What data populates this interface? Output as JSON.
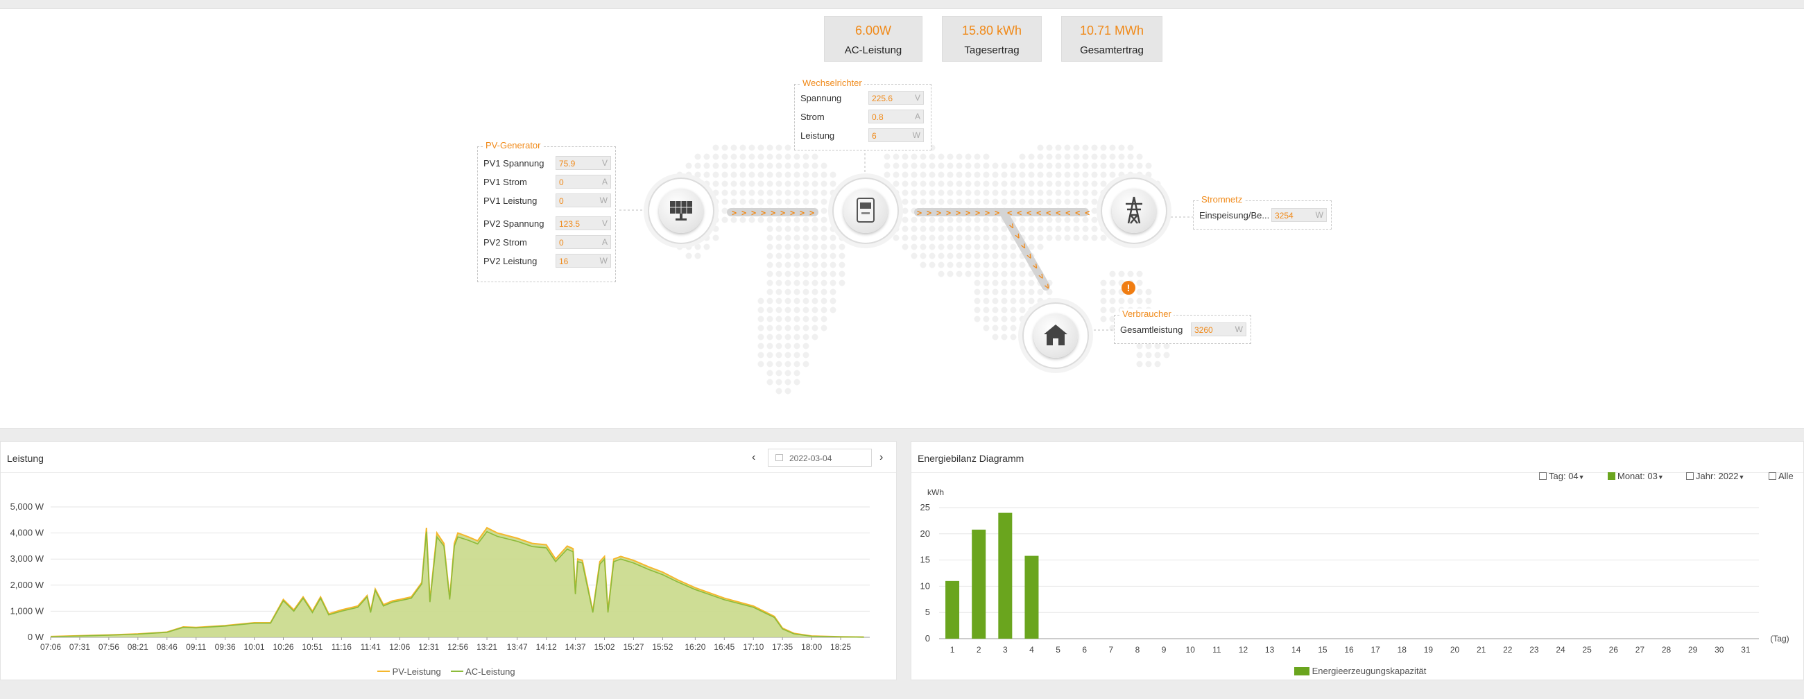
{
  "stats": [
    {
      "value": "6.00W",
      "label": "AC-Leistung"
    },
    {
      "value": "15.80 kWh",
      "label": "Tagesertrag"
    },
    {
      "value": "10.71 MWh",
      "label": "Gesamtertrag"
    }
  ],
  "pv_generator": {
    "title": "PV-Generator",
    "rows": [
      {
        "label": "PV1 Spannung",
        "value": "75.9",
        "unit": "V"
      },
      {
        "label": "PV1 Strom",
        "value": "0",
        "unit": "A"
      },
      {
        "label": "PV1 Leistung",
        "value": "0",
        "unit": "W"
      },
      {
        "label": "PV2 Spannung",
        "value": "123.5",
        "unit": "V"
      },
      {
        "label": "PV2 Strom",
        "value": "0",
        "unit": "A"
      },
      {
        "label": "PV2 Leistung",
        "value": "16",
        "unit": "W"
      }
    ]
  },
  "inverter": {
    "title": "Wechselrichter",
    "rows": [
      {
        "label": "Spannung",
        "value": "225.6",
        "unit": "V"
      },
      {
        "label": "Strom",
        "value": "0.8",
        "unit": "A"
      },
      {
        "label": "Leistung",
        "value": "6",
        "unit": "W"
      }
    ]
  },
  "grid": {
    "title": "Stromnetz",
    "rows": [
      {
        "label": "Einspeisung/Be...",
        "value": "3254",
        "unit": "W"
      }
    ]
  },
  "consumer": {
    "title": "Verbraucher",
    "rows": [
      {
        "label": "Gesamtleistung",
        "value": "3260",
        "unit": "W"
      }
    ]
  },
  "icons": {
    "pv": "solar-panel-icon",
    "inverter": "inverter-icon",
    "grid": "power-pylon-icon",
    "home": "house-icon",
    "warning": "warning-icon",
    "calendar": "calendar-icon"
  },
  "colors": {
    "accent": "#f08a1a",
    "pv_line": "#f5b72c",
    "ac_line": "#8dbb3a",
    "area_fill": "#c9d98a",
    "bar": "#6aa51e",
    "warning": "#f07d12"
  },
  "power_panel": {
    "title": "Leistung",
    "date": "2022-03-04",
    "prev_label": "‹",
    "next_label": "›",
    "legend": [
      "PV-Leistung",
      "AC-Leistung"
    ]
  },
  "energy_panel": {
    "title": "Energiebilanz Diagramm",
    "controls": {
      "tag_label": "Tag:",
      "tag_value": "04",
      "monat_label": "Monat:",
      "monat_value": "03",
      "jahr_label": "Jahr:",
      "jahr_value": "2022",
      "alle_label": "Alle"
    },
    "legend": "Energieerzeugungskapazität"
  },
  "chart_data": [
    {
      "type": "area",
      "title": "Leistung",
      "y_ticks": [
        "0 W",
        "1,000 W",
        "2,000 W",
        "3,000 W",
        "4,000 W",
        "5,000 W"
      ],
      "ylim": [
        0,
        5000
      ],
      "x_tick_labels": [
        "07:06",
        "07:31",
        "07:56",
        "08:21",
        "08:46",
        "09:11",
        "09:36",
        "10:01",
        "10:26",
        "10:51",
        "11:16",
        "11:41",
        "12:06",
        "12:31",
        "12:56",
        "13:21",
        "13:47",
        "14:12",
        "14:37",
        "15:02",
        "15:27",
        "15:52",
        "16:20",
        "16:45",
        "17:10",
        "17:35",
        "18:00",
        "18:25"
      ],
      "x_times": [
        "07:06",
        "07:31",
        "07:56",
        "08:21",
        "08:46",
        "09:00",
        "09:11",
        "09:36",
        "10:01",
        "10:15",
        "10:26",
        "10:35",
        "10:43",
        "10:51",
        "10:58",
        "11:05",
        "11:16",
        "11:30",
        "11:38",
        "11:41",
        "11:45",
        "11:52",
        "12:00",
        "12:06",
        "12:16",
        "12:25",
        "12:29",
        "12:32",
        "12:38",
        "12:44",
        "12:49",
        "12:53",
        "12:56",
        "13:05",
        "13:13",
        "13:21",
        "13:30",
        "13:47",
        "14:00",
        "14:12",
        "14:20",
        "14:30",
        "14:35",
        "14:37",
        "14:39",
        "14:43",
        "14:52",
        "14:58",
        "15:02",
        "15:05",
        "15:10",
        "15:16",
        "15:27",
        "15:40",
        "15:52",
        "16:05",
        "16:20",
        "16:45",
        "17:10",
        "17:28",
        "17:35",
        "17:45",
        "18:00",
        "18:25",
        "18:45"
      ],
      "series": [
        {
          "name": "PV-Leistung",
          "values": [
            30,
            60,
            90,
            130,
            200,
            400,
            380,
            450,
            560,
            560,
            1450,
            1050,
            1550,
            1000,
            1550,
            900,
            1050,
            1200,
            1600,
            1000,
            1850,
            1250,
            1400,
            1450,
            1550,
            2100,
            4200,
            1400,
            4000,
            3600,
            1500,
            3600,
            4000,
            3850,
            3700,
            4200,
            4000,
            3800,
            3600,
            3550,
            3000,
            3500,
            3400,
            1700,
            3000,
            2950,
            1000,
            2900,
            3100,
            1000,
            3000,
            3100,
            2950,
            2700,
            2500,
            2200,
            1900,
            1500,
            1200,
            800,
            350,
            150,
            50,
            20,
            10
          ]
        },
        {
          "name": "AC-Leistung",
          "values": [
            20,
            50,
            80,
            120,
            190,
            380,
            360,
            430,
            540,
            540,
            1400,
            1000,
            1500,
            950,
            1500,
            860,
            1000,
            1150,
            1550,
            950,
            1800,
            1200,
            1350,
            1400,
            1500,
            2050,
            4050,
            1350,
            3850,
            3500,
            1450,
            3500,
            3850,
            3720,
            3580,
            4050,
            3870,
            3680,
            3480,
            3430,
            2900,
            3380,
            3280,
            1650,
            2900,
            2850,
            950,
            2800,
            3000,
            950,
            2900,
            3000,
            2850,
            2600,
            2400,
            2120,
            1830,
            1440,
            1150,
            760,
            320,
            130,
            40,
            15,
            5
          ]
        }
      ]
    },
    {
      "type": "bar",
      "title": "Energiebilanz Diagramm",
      "ylabel": "kWh",
      "xlabel": "(Tag)",
      "ylim": [
        0,
        25
      ],
      "y_ticks": [
        0,
        5,
        10,
        15,
        20,
        25
      ],
      "categories": [
        "1",
        "2",
        "3",
        "4",
        "5",
        "6",
        "7",
        "8",
        "9",
        "10",
        "11",
        "12",
        "13",
        "14",
        "15",
        "16",
        "17",
        "18",
        "19",
        "20",
        "21",
        "22",
        "23",
        "24",
        "25",
        "26",
        "27",
        "28",
        "29",
        "30",
        "31"
      ],
      "values": [
        11,
        20.8,
        24,
        15.8,
        0,
        0,
        0,
        0,
        0,
        0,
        0,
        0,
        0,
        0,
        0,
        0,
        0,
        0,
        0,
        0,
        0,
        0,
        0,
        0,
        0,
        0,
        0,
        0,
        0,
        0,
        0
      ],
      "series_name": "Energieerzeugungskapazität"
    }
  ]
}
